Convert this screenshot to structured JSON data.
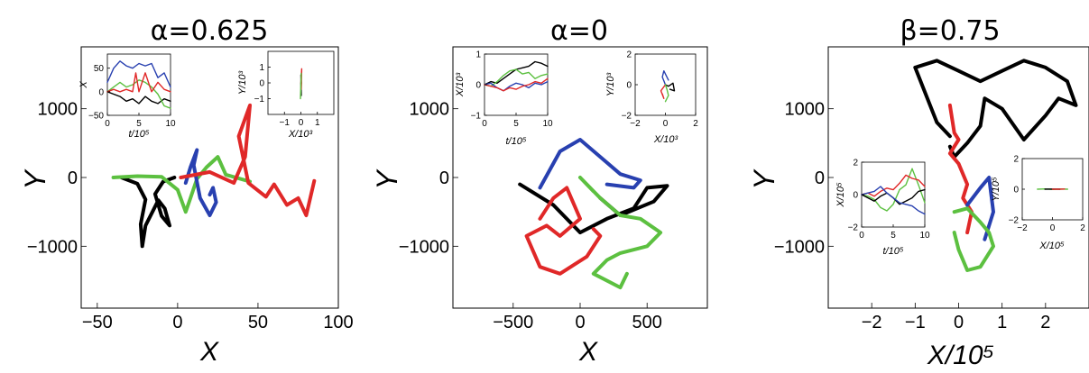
{
  "colors": {
    "black": "#000000",
    "blue": "#2840b0",
    "red": "#e02828",
    "green": "#5cc040"
  },
  "chart_data": [
    {
      "type": "scatter",
      "title": "α=0.625",
      "xlabel": "X",
      "ylabel": "Y",
      "xlim": [
        -60,
        100
      ],
      "ylim": [
        -1900,
        1900
      ],
      "xticks": [
        -50,
        0,
        50,
        100
      ],
      "yticks": [
        -1000,
        0,
        1000
      ],
      "series": [
        {
          "color": "black",
          "x": [
            -35,
            -25,
            -20,
            -23,
            -22,
            -20,
            -12,
            -8,
            -5,
            -10,
            -14,
            -9,
            -2
          ],
          "y": [
            0,
            -90,
            -320,
            -680,
            -1000,
            -700,
            -330,
            -450,
            -700,
            -560,
            -240,
            -60,
            0
          ]
        },
        {
          "color": "green",
          "x": [
            -40,
            -25,
            -10,
            0,
            5,
            8,
            12,
            18,
            25,
            30,
            45
          ],
          "y": [
            0,
            20,
            10,
            -180,
            -500,
            -300,
            -20,
            150,
            300,
            40,
            -60
          ]
        },
        {
          "color": "blue",
          "x": [
            5,
            8,
            12,
            10,
            14,
            20,
            24,
            22,
            20
          ],
          "y": [
            -80,
            150,
            400,
            180,
            -300,
            -550,
            -360,
            -150,
            -250
          ]
        },
        {
          "color": "red",
          "x": [
            2,
            20,
            35,
            42,
            45,
            38,
            44,
            55,
            60,
            68,
            75,
            80,
            85
          ],
          "y": [
            0,
            80,
            -80,
            300,
            1050,
            600,
            -80,
            -280,
            -100,
            -400,
            -300,
            -550,
            -50
          ]
        }
      ],
      "insets": [
        {
          "xlabel": "t/10⁵",
          "ylabel": "X",
          "xlim": [
            0,
            10
          ],
          "ylim": [
            -50,
            80
          ],
          "xticks": [
            0,
            5,
            10
          ],
          "yticks": [
            -50,
            0,
            50
          ],
          "series": [
            {
              "color": "blue",
              "x": [
                0,
                1,
                2,
                3,
                4,
                5,
                6,
                7,
                8,
                9,
                10
              ],
              "y": [
                20,
                50,
                65,
                55,
                50,
                60,
                55,
                60,
                30,
                40,
                10
              ]
            },
            {
              "color": "black",
              "x": [
                0,
                1,
                2,
                3,
                4,
                5,
                6,
                7,
                8,
                9,
                10
              ],
              "y": [
                0,
                -5,
                -10,
                -20,
                -15,
                -25,
                -10,
                -20,
                -25,
                -15,
                -20
              ]
            },
            {
              "color": "green",
              "x": [
                0,
                1,
                2,
                3,
                4,
                5,
                6,
                7,
                8,
                9,
                10
              ],
              "y": [
                0,
                10,
                20,
                10,
                15,
                25,
                20,
                10,
                -5,
                -30,
                -35
              ]
            },
            {
              "color": "red",
              "x": [
                0,
                1,
                2,
                3,
                4,
                4.5,
                5,
                6,
                7,
                8,
                9,
                10
              ],
              "y": [
                0,
                5,
                0,
                5,
                0,
                40,
                0,
                40,
                0,
                20,
                5,
                0
              ]
            }
          ]
        },
        {
          "xlabel": "X/10³",
          "ylabel": "Y/10³",
          "xlim": [
            -2,
            2
          ],
          "ylim": [
            -2,
            2
          ],
          "xticks": [
            -1,
            0,
            1
          ],
          "yticks": [
            -1,
            0,
            1
          ],
          "series": [
            {
              "color": "black",
              "x": [
                0,
                0.02,
                0,
                0.03
              ],
              "y": [
                0,
                -0.8,
                0.5,
                0
              ]
            },
            {
              "color": "red",
              "x": [
                0,
                0.05,
                0.02,
                0.04
              ],
              "y": [
                0,
                0.9,
                -0.4,
                0
              ]
            },
            {
              "color": "green",
              "x": [
                0,
                -0.03,
                0.02,
                0
              ],
              "y": [
                0,
                -1,
                0.6,
                -0.3
              ]
            }
          ]
        }
      ]
    },
    {
      "type": "scatter",
      "title": "α=0",
      "xlabel": "X",
      "ylabel": "Y",
      "xlim": [
        -950,
        950
      ],
      "ylim": [
        -1900,
        1900
      ],
      "xticks": [
        -500,
        0,
        500
      ],
      "yticks": [
        -1000,
        0,
        1000
      ],
      "series": [
        {
          "color": "blue",
          "x": [
            -300,
            -150,
            0,
            150,
            300,
            450,
            400,
            200
          ],
          "y": [
            -150,
            380,
            550,
            300,
            50,
            -40,
            -150,
            -100
          ]
        },
        {
          "color": "black",
          "x": [
            -450,
            -200,
            0,
            200,
            400,
            500,
            650,
            550,
            300,
            150
          ],
          "y": [
            -100,
            -400,
            -800,
            -600,
            -450,
            -150,
            -120,
            -350,
            -550,
            -300
          ]
        },
        {
          "color": "red",
          "x": [
            -300,
            -200,
            -100,
            0,
            -150,
            -250,
            -400,
            -300,
            -150,
            50,
            150,
            100
          ],
          "y": [
            -600,
            -300,
            -150,
            -600,
            -850,
            -700,
            -850,
            -1300,
            -1400,
            -1150,
            -850,
            -750
          ]
        },
        {
          "color": "green",
          "x": [
            100,
            0,
            150,
            300,
            450,
            600,
            500,
            300,
            200,
            100,
            300,
            350
          ],
          "y": [
            -200,
            0,
            -300,
            -550,
            -600,
            -800,
            -1000,
            -1100,
            -1200,
            -1400,
            -1600,
            -1400
          ]
        }
      ],
      "insets": [
        {
          "xlabel": "t/10⁵",
          "ylabel": "X/10³",
          "xlim": [
            0,
            10
          ],
          "ylim": [
            -1,
            1
          ],
          "xticks": [
            0,
            5,
            10
          ],
          "yticks": [
            -1,
            0,
            1
          ],
          "series": [
            {
              "color": "black",
              "x": [
                0,
                1,
                2,
                3,
                4,
                5,
                6,
                7,
                8,
                9,
                10
              ],
              "y": [
                0,
                0.1,
                0.05,
                0.2,
                0.35,
                0.5,
                0.55,
                0.6,
                0.75,
                0.7,
                0.6
              ]
            },
            {
              "color": "green",
              "x": [
                0,
                1,
                2,
                3,
                4,
                5,
                6,
                7,
                8,
                9,
                10
              ],
              "y": [
                0,
                -0.05,
                0.1,
                0.3,
                0.45,
                0.5,
                0.35,
                0.4,
                0.2,
                0.3,
                0.35
              ]
            },
            {
              "color": "blue",
              "x": [
                0,
                1,
                2,
                3,
                4,
                5,
                6,
                7,
                8,
                9,
                10
              ],
              "y": [
                0,
                0.05,
                -0.1,
                -0.2,
                -0.05,
                0.05,
                0,
                -0.1,
                0.05,
                0,
                0.1
              ]
            },
            {
              "color": "red",
              "x": [
                0,
                1,
                2,
                3,
                4,
                5,
                6,
                7,
                8,
                9,
                10
              ],
              "y": [
                0,
                -0.05,
                -0.1,
                -0.2,
                -0.1,
                -0.15,
                -0.05,
                0,
                0.1,
                0.05,
                0.2
              ]
            }
          ]
        },
        {
          "xlabel": "X/10³",
          "ylabel": "Y/10³",
          "xlim": [
            -2,
            2
          ],
          "ylim": [
            -2,
            2
          ],
          "xticks": [
            -2,
            0,
            2
          ],
          "yticks": [
            -2,
            0,
            2
          ],
          "series": [
            {
              "color": "black",
              "x": [
                0,
                0.2,
                0.5,
                0.6,
                0.3
              ],
              "y": [
                0,
                -0.1,
                0.1,
                -0.4,
                -0.3
              ]
            },
            {
              "color": "blue",
              "x": [
                0,
                -0.2,
                -0.1,
                0.2
              ],
              "y": [
                0,
                0.5,
                0.9,
                0.3
              ]
            },
            {
              "color": "red",
              "x": [
                0,
                -0.3,
                -0.1,
                -0.2
              ],
              "y": [
                0,
                -0.4,
                -0.9,
                -0.6
              ]
            },
            {
              "color": "green",
              "x": [
                0,
                0.1,
                0.2,
                0
              ],
              "y": [
                0,
                -0.3,
                -0.7,
                -1.1
              ]
            }
          ]
        }
      ]
    },
    {
      "type": "scatter",
      "title": "β=0.75",
      "xlabel": "X/10⁵",
      "ylabel": "Y",
      "xlim": [
        -3,
        3
      ],
      "ylim": [
        -1900,
        1900
      ],
      "xticks": [
        -2,
        -1,
        0,
        1,
        2
      ],
      "yticks": [
        -1000,
        0,
        1000
      ],
      "series": [
        {
          "color": "black",
          "x": [
            -0.2,
            -0.5,
            -1.0,
            -0.5,
            0.0,
            0.5,
            1.0,
            1.5,
            2.0,
            2.5,
            2.7,
            2.3,
            2.0,
            1.5,
            1.0,
            0.6,
            0.5,
            0.2,
            -0.1,
            -0.2
          ],
          "y": [
            600,
            800,
            1600,
            1700,
            1550,
            1400,
            1550,
            1700,
            1600,
            1400,
            1050,
            1150,
            900,
            550,
            1000,
            1150,
            750,
            500,
            300,
            450
          ]
        },
        {
          "color": "red",
          "x": [
            -0.2,
            -0.1,
            0.0,
            -0.2,
            0.0,
            0.2,
            0.1,
            0.3,
            0.2
          ],
          "y": [
            1050,
            650,
            550,
            350,
            200,
            -100,
            -300,
            -500,
            -800
          ]
        },
        {
          "color": "blue",
          "x": [
            0.2,
            0.5,
            0.7,
            0.8,
            0.6
          ],
          "y": [
            -400,
            -150,
            0,
            -500,
            -900
          ]
        },
        {
          "color": "green",
          "x": [
            -0.1,
            0.2,
            0.5,
            0.7,
            0.8,
            0.5,
            0.2,
            0.0,
            -0.1
          ],
          "y": [
            -500,
            -450,
            -650,
            -800,
            -1000,
            -1300,
            -1350,
            -1050,
            -800
          ]
        }
      ],
      "insets": [
        {
          "xlabel": "t/10⁵",
          "ylabel": "X/10⁵",
          "xlim": [
            0,
            10
          ],
          "ylim": [
            -2,
            2
          ],
          "xticks": [
            0,
            5,
            10
          ],
          "yticks": [
            -2,
            0,
            2
          ],
          "series": [
            {
              "color": "green",
              "x": [
                0,
                1,
                2,
                3,
                4,
                5,
                6,
                7,
                8,
                9,
                10
              ],
              "y": [
                0,
                -0.1,
                -0.3,
                -0.8,
                -1,
                -0.6,
                0.3,
                0.6,
                1.6,
                0.6,
                -0.5
              ]
            },
            {
              "color": "red",
              "x": [
                0,
                1,
                2,
                3,
                4,
                5,
                6,
                7,
                8,
                9,
                10
              ],
              "y": [
                0,
                0.1,
                -0.1,
                0.2,
                0.4,
                0.3,
                0.7,
                1.2,
                1.0,
                0.9,
                0.5
              ]
            },
            {
              "color": "black",
              "x": [
                0,
                1,
                2,
                3,
                4,
                5,
                6,
                7,
                8,
                9,
                10
              ],
              "y": [
                0,
                -0.2,
                -0.4,
                -0.1,
                0.1,
                -0.2,
                -0.6,
                -0.4,
                -0.2,
                0.2,
                0.3
              ]
            },
            {
              "color": "blue",
              "x": [
                0,
                1,
                2,
                3,
                4,
                5,
                6,
                7,
                8,
                9,
                10
              ],
              "y": [
                0,
                0.1,
                0.2,
                0.5,
                0.1,
                -0.2,
                -0.5,
                -0.6,
                -0.7,
                -1.0,
                -1.2
              ]
            }
          ]
        },
        {
          "xlabel": "X/10⁵",
          "ylabel": "Y/10⁵",
          "xlim": [
            -2,
            2
          ],
          "ylim": [
            -2,
            2
          ],
          "xticks": [
            -2,
            0,
            2
          ],
          "yticks": [
            -2,
            0,
            2
          ],
          "series": [
            {
              "color": "green",
              "x": [
                -1,
                -0.5,
                0,
                0.5,
                1
              ],
              "y": [
                0,
                0.02,
                -0.02,
                0.01,
                0
              ]
            },
            {
              "color": "black",
              "x": [
                -0.5,
                0,
                0.5
              ],
              "y": [
                0,
                0.01,
                0
              ]
            },
            {
              "color": "red",
              "x": [
                0,
                0.4,
                0.8
              ],
              "y": [
                0,
                0,
                0.01
              ]
            }
          ]
        }
      ]
    }
  ]
}
